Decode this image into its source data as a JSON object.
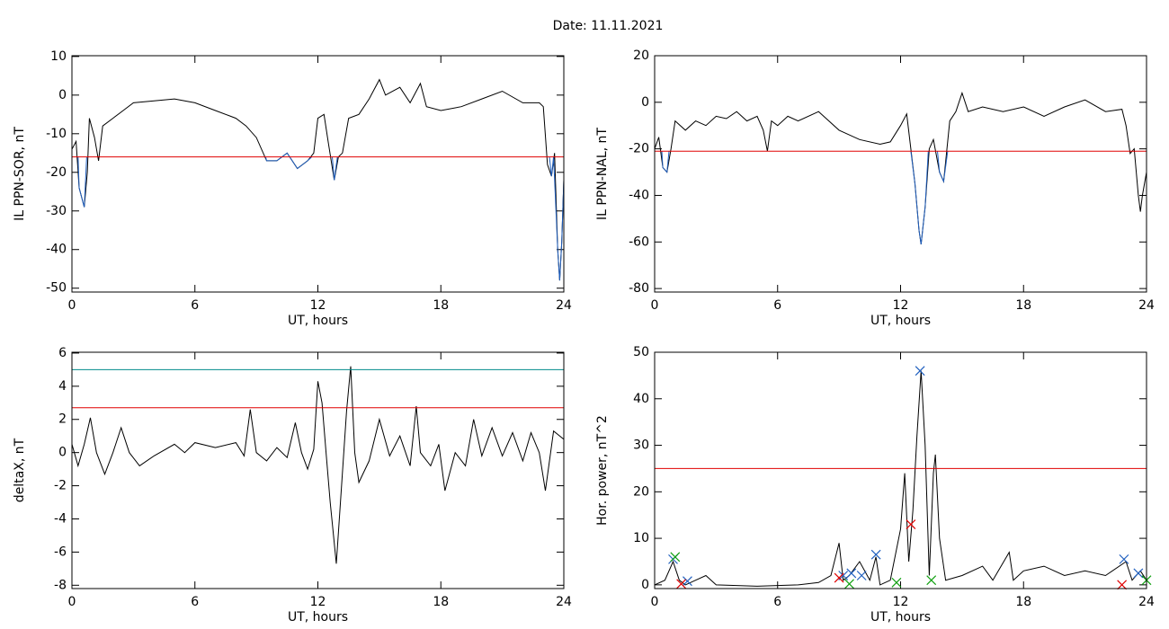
{
  "title": "Date:  11.11.2021",
  "chart_data": [
    {
      "type": "line",
      "ylabel": "IL PPN-SOR, nT",
      "xlabel": "UT, hours",
      "xlim": [
        0,
        24
      ],
      "xticks": [
        0,
        6,
        12,
        18,
        24
      ],
      "ylim": [
        -51,
        10.2
      ],
      "yticks": [
        10,
        0,
        -10,
        -20,
        -30,
        -40,
        -50
      ],
      "series": [
        {
          "color": "#000000",
          "x": [
            0,
            0.2,
            0.35,
            0.6,
            0.75,
            0.85,
            1.1,
            1.3,
            1.5,
            2,
            2.5,
            3,
            4,
            5,
            6,
            7,
            8,
            8.5,
            9,
            9.5,
            10,
            10.5,
            11,
            11.5,
            11.8,
            12,
            12.3,
            12.5,
            12.8,
            13,
            13.2,
            13.5,
            14,
            14.5,
            15,
            15.3,
            16,
            16.5,
            17,
            17.3,
            18,
            19,
            20,
            21,
            22,
            22.8,
            23,
            23.2,
            23.4,
            23.55,
            23.7,
            23.8,
            23.9,
            24
          ],
          "values": [
            -14,
            -12,
            -24,
            -29,
            -20,
            -6,
            -11,
            -17,
            -8,
            -6,
            -4,
            -2,
            -1.5,
            -1,
            -2,
            -4,
            -6,
            -8,
            -11,
            -17,
            -17,
            -15,
            -19,
            -17,
            -15,
            -6,
            -5,
            -12,
            -22,
            -16,
            -15,
            -6,
            -5,
            -1,
            4,
            0,
            2,
            -2,
            3,
            -3,
            -4,
            -3,
            -1,
            1,
            -2,
            -2,
            -3,
            -18,
            -21,
            -15,
            -40,
            -48,
            -38,
            -22
          ]
        },
        {
          "color": "#1f5fbf",
          "x": [
            0.3,
            0.35,
            0.6,
            0.72,
            5,
            9.45,
            9.5,
            10,
            10.5,
            11,
            11.5,
            11.7,
            12,
            12.7,
            12.8,
            12.95,
            18,
            23.3,
            23.4,
            23.5,
            23.7,
            23.8,
            23.9,
            24
          ],
          "values": [
            -16,
            -24,
            -29,
            -16,
            null,
            -16,
            -17,
            -17,
            -15,
            -19,
            -17,
            -16,
            null,
            -16,
            -22,
            -16,
            null,
            -16,
            -21,
            -16,
            -40,
            -48,
            -38,
            -22
          ]
        },
        {
          "color": "#e00000",
          "x": [
            0,
            24
          ],
          "values": [
            -16,
            -16
          ]
        }
      ]
    },
    {
      "type": "line",
      "ylabel": "IL PPN-NAL, nT",
      "xlabel": "UT, hours",
      "xlim": [
        0,
        24
      ],
      "xticks": [
        0,
        6,
        12,
        18,
        24
      ],
      "ylim": [
        -81.5,
        20
      ],
      "yticks": [
        20,
        0,
        -20,
        -40,
        -60,
        -80
      ],
      "series": [
        {
          "color": "#000000",
          "x": [
            0,
            0.2,
            0.4,
            0.6,
            0.8,
            1,
            1.5,
            2,
            2.5,
            3,
            3.5,
            4,
            4.5,
            5,
            5.3,
            5.5,
            5.7,
            6,
            6.5,
            7,
            8,
            9,
            10,
            11,
            11.5,
            12,
            12.3,
            12.5,
            12.7,
            12.9,
            13,
            13.2,
            13.4,
            13.6,
            13.9,
            14.1,
            14.4,
            14.7,
            15,
            15.3,
            16,
            17,
            18,
            19,
            20,
            21,
            22,
            22.8,
            23,
            23.2,
            23.4,
            23.6,
            23.7,
            23.8,
            24
          ],
          "values": [
            -20,
            -15,
            -28,
            -30,
            -20,
            -8,
            -12,
            -8,
            -10,
            -6,
            -7,
            -4,
            -8,
            -6,
            -12,
            -21,
            -8,
            -10,
            -6,
            -8,
            -4,
            -12,
            -16,
            -18,
            -17,
            -10,
            -5,
            -20,
            -35,
            -55,
            -61,
            -45,
            -20,
            -16,
            -30,
            -34,
            -8,
            -4,
            4,
            -4,
            -2,
            -4,
            -2,
            -6,
            -2,
            1,
            -4,
            -3,
            -10,
            -22,
            -20,
            -40,
            -47,
            -40,
            -30
          ]
        },
        {
          "color": "#1f5fbf",
          "x": [
            0.35,
            0.4,
            0.6,
            0.7,
            6,
            12.5,
            12.7,
            12.9,
            13,
            13.2,
            13.35,
            13.6,
            13.8,
            13.9,
            14.1,
            14.3
          ],
          "values": [
            -21,
            -28,
            -30,
            -21,
            null,
            -21,
            -35,
            -55,
            -61,
            -45,
            -21,
            null,
            -21,
            -30,
            -34,
            -21
          ]
        },
        {
          "color": "#e00000",
          "x": [
            0,
            24
          ],
          "values": [
            -21,
            -21
          ]
        }
      ]
    },
    {
      "type": "line",
      "ylabel": "deltaX, nT",
      "xlabel": "UT, hours",
      "xlim": [
        0,
        24
      ],
      "xticks": [
        0,
        6,
        12,
        18,
        24
      ],
      "ylim": [
        -8.2,
        6.05
      ],
      "yticks": [
        6,
        4,
        2,
        0,
        -2,
        -4,
        -6,
        -8
      ],
      "series": [
        {
          "color": "#000000",
          "x": [
            0,
            0.3,
            0.6,
            0.9,
            1.2,
            1.6,
            2,
            2.4,
            2.8,
            3.3,
            4,
            5,
            5.5,
            6,
            7,
            8,
            8.4,
            8.7,
            9,
            9.5,
            10,
            10.5,
            10.9,
            11.2,
            11.5,
            11.8,
            12,
            12.2,
            12.4,
            12.6,
            12.9,
            13.1,
            13.4,
            13.6,
            13.8,
            14,
            14.5,
            15,
            15.5,
            16,
            16.5,
            16.8,
            17,
            17.5,
            17.9,
            18.2,
            18.7,
            19.2,
            19.6,
            20,
            20.5,
            21,
            21.5,
            22,
            22.4,
            22.8,
            23.1,
            23.5,
            24
          ],
          "values": [
            0.5,
            -0.8,
            0.5,
            2.1,
            0,
            -1.3,
            0,
            1.5,
            0,
            -0.8,
            -0.2,
            0.5,
            0,
            0.6,
            0.3,
            0.6,
            -0.2,
            2.6,
            0,
            -0.5,
            0.3,
            -0.3,
            1.8,
            0,
            -1,
            0.2,
            4.3,
            3,
            0,
            -3,
            -6.7,
            -3,
            2.5,
            5.2,
            0,
            -1.8,
            -0.5,
            2,
            -0.2,
            1,
            -0.8,
            2.8,
            0,
            -0.8,
            0.5,
            -2.3,
            0,
            -0.8,
            2,
            -0.2,
            1.5,
            -0.2,
            1.2,
            -0.5,
            1.2,
            0,
            -2.3,
            1.3,
            0.8
          ]
        },
        {
          "color": "#e00000",
          "x": [
            0,
            24
          ],
          "values": [
            2.7,
            2.7
          ]
        },
        {
          "color": "#008b8b",
          "x": [
            0,
            24
          ],
          "values": [
            5,
            5
          ]
        }
      ]
    },
    {
      "type": "line",
      "ylabel": "Hor. power, nT^2",
      "xlabel": "UT, hours",
      "xlim": [
        0,
        24
      ],
      "xticks": [
        0,
        6,
        12,
        18,
        24
      ],
      "ylim": [
        -0.8,
        50
      ],
      "yticks": [
        50,
        40,
        30,
        20,
        10,
        0
      ],
      "series": [
        {
          "color": "#000000",
          "x": [
            0,
            0.5,
            0.9,
            1.2,
            1.5,
            2,
            2.5,
            3,
            5,
            7,
            8,
            8.6,
            9,
            9.2,
            9.5,
            10,
            10.5,
            10.8,
            11,
            11.5,
            12,
            12.2,
            12.4,
            12.6,
            12.8,
            13,
            13.2,
            13.4,
            13.6,
            13.7,
            13.9,
            14.2,
            15,
            16,
            16.5,
            17.3,
            17.5,
            18,
            19,
            20,
            21,
            22,
            23,
            23.3,
            23.7,
            24
          ],
          "values": [
            0,
            1,
            5,
            1,
            0,
            1,
            2,
            0,
            -0.3,
            0,
            0.5,
            2,
            9,
            1,
            2,
            5,
            1,
            6,
            0,
            1,
            12,
            24,
            5,
            16,
            32,
            46,
            30,
            2,
            24,
            28,
            10,
            1,
            2,
            4,
            1,
            7,
            1,
            3,
            4,
            2,
            3,
            2,
            5,
            1,
            3,
            1
          ]
        },
        {
          "color": "#e00000",
          "x": [
            0,
            24
          ],
          "values": [
            25,
            25
          ]
        },
        {
          "color": "#1f5fbf",
          "marker": "x",
          "x": [
            0.9,
            1.6,
            9.2,
            9.6,
            10.1,
            10.8,
            12.95,
            22.9,
            23.6
          ],
          "values": [
            5.5,
            0.8,
            2,
            2.5,
            2,
            6.5,
            46,
            5.5,
            2.5
          ]
        },
        {
          "color": "#e00000",
          "marker": "x",
          "x": [
            1.3,
            9,
            12.5,
            22.8
          ],
          "values": [
            0.2,
            1.5,
            13,
            0
          ]
        },
        {
          "color": "#10a010",
          "marker": "x",
          "x": [
            1,
            9.5,
            11.8,
            13.5,
            24
          ],
          "values": [
            6,
            0.2,
            0.5,
            1,
            1
          ]
        }
      ]
    }
  ]
}
